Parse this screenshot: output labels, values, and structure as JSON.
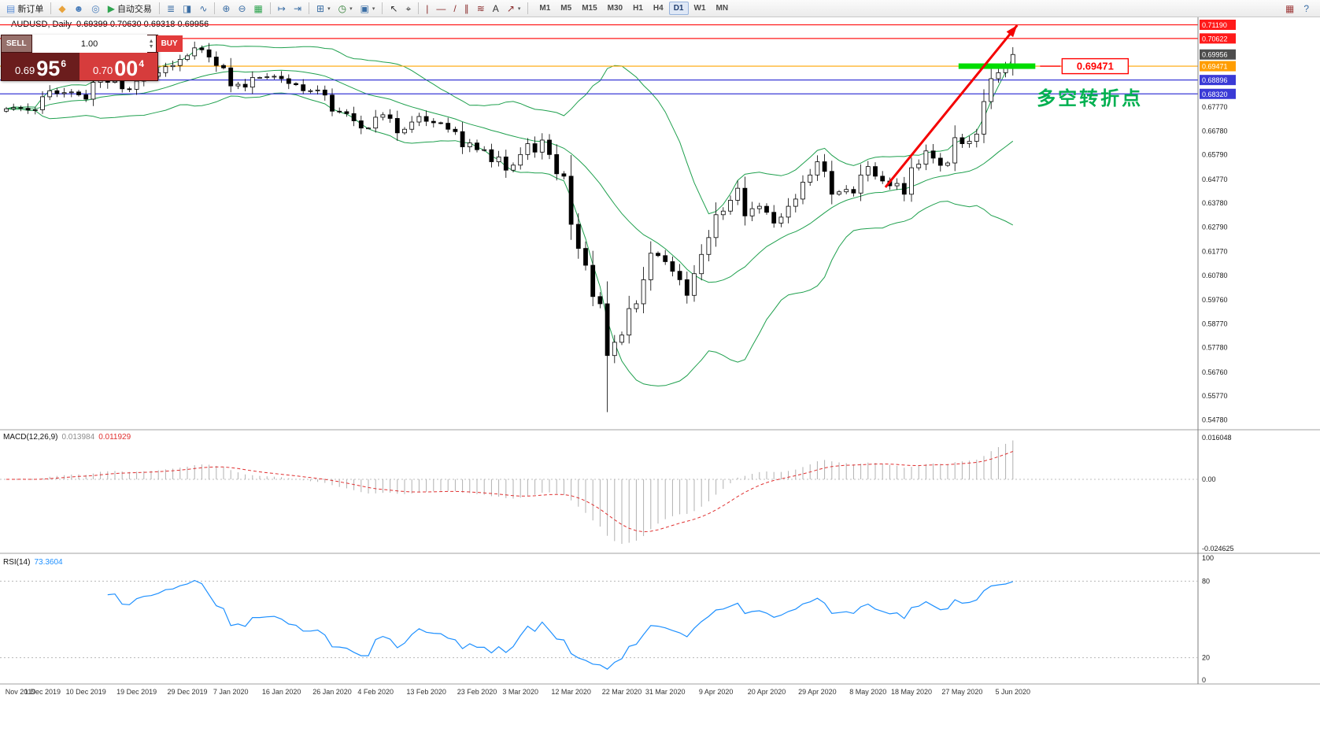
{
  "toolbar": {
    "items": [
      {
        "t": "b",
        "name": "new-order-button",
        "icon": "new-order-icon",
        "g": "▤",
        "c": "#5b8ed6",
        "label": "新订单"
      },
      {
        "t": "s"
      },
      {
        "t": "b",
        "name": "metaeditor-button",
        "icon": "metaeditor-icon",
        "g": "◆",
        "c": "#e8a33d"
      },
      {
        "t": "b",
        "name": "market-watch-button",
        "icon": "market-watch-icon",
        "g": "☻",
        "c": "#4a7ebb"
      },
      {
        "t": "b",
        "name": "data-window-button",
        "icon": "data-window-icon",
        "g": "◎",
        "c": "#4a7ebb"
      },
      {
        "t": "b",
        "name": "autotrading-button",
        "icon": "play-icon",
        "g": "▶",
        "c": "#2ea44f",
        "label": "自动交易"
      },
      {
        "t": "s"
      },
      {
        "t": "b",
        "name": "bars-mode-button",
        "icon": "bars-chart-icon",
        "g": "≣",
        "c": "#3b6ea5"
      },
      {
        "t": "b",
        "name": "candles-mode-button",
        "icon": "candlestick-icon",
        "g": "◨",
        "c": "#3b6ea5"
      },
      {
        "t": "b",
        "name": "line-mode-button",
        "icon": "line-chart-icon",
        "g": "∿",
        "c": "#3b6ea5"
      },
      {
        "t": "s"
      },
      {
        "t": "b",
        "name": "zoom-in-button",
        "icon": "zoom-in-icon",
        "g": "⊕",
        "c": "#3b6ea5"
      },
      {
        "t": "b",
        "name": "zoom-out-button",
        "icon": "zoom-out-icon",
        "g": "⊖",
        "c": "#3b6ea5"
      },
      {
        "t": "b",
        "name": "tile-windows-button",
        "icon": "tile-windows-icon",
        "g": "▦",
        "c": "#2ea44f"
      },
      {
        "t": "s"
      },
      {
        "t": "b",
        "name": "auto-scroll-button",
        "icon": "auto-scroll-icon",
        "g": "↦",
        "c": "#3b6ea5"
      },
      {
        "t": "b",
        "name": "chart-shift-button",
        "icon": "chart-shift-icon",
        "g": "⇥",
        "c": "#3b6ea5"
      },
      {
        "t": "s"
      },
      {
        "t": "b",
        "name": "new-chart-button",
        "icon": "new-chart-icon",
        "g": "⊞",
        "c": "#3b6ea5",
        "dd": true
      },
      {
        "t": "b",
        "name": "period-button",
        "icon": "clock-icon",
        "g": "◷",
        "c": "#2e7d32",
        "dd": true
      },
      {
        "t": "b",
        "name": "template-button",
        "icon": "template-icon",
        "g": "▣",
        "c": "#3b6ea5",
        "dd": true
      },
      {
        "t": "s"
      },
      {
        "t": "b",
        "name": "cursor-button",
        "icon": "cursor-icon",
        "g": "↖",
        "c": "#333333"
      },
      {
        "t": "b",
        "name": "crosshair-button",
        "icon": "crosshair-icon",
        "g": "⌖",
        "c": "#333333"
      },
      {
        "t": "s"
      },
      {
        "t": "b",
        "name": "vertical-line-button",
        "icon": "vertical-line-icon",
        "g": "|",
        "c": "#8a2b2b"
      },
      {
        "t": "b",
        "name": "horizontal-line-button",
        "icon": "horizontal-line-icon",
        "g": "—",
        "c": "#8a2b2b"
      },
      {
        "t": "b",
        "name": "trendline-button",
        "icon": "trendline-icon",
        "g": "/",
        "c": "#8a2b2b"
      },
      {
        "t": "b",
        "name": "channel-button",
        "icon": "channel-icon",
        "g": "∥",
        "c": "#8a2b2b"
      },
      {
        "t": "b",
        "name": "fibonacci-button",
        "icon": "fibonacci-icon",
        "g": "≋",
        "c": "#8a2b2b"
      },
      {
        "t": "b",
        "name": "text-button",
        "icon": "text-icon",
        "g": "A",
        "c": "#333333"
      },
      {
        "t": "b",
        "name": "arrows-button",
        "icon": "arrow-tool-icon",
        "g": "↗",
        "c": "#8a2b2b",
        "dd": true
      },
      {
        "t": "s"
      }
    ],
    "timeframes": [
      {
        "label": "M1"
      },
      {
        "label": "M5"
      },
      {
        "label": "M15"
      },
      {
        "label": "M30"
      },
      {
        "label": "H1"
      },
      {
        "label": "H4"
      },
      {
        "label": "D1",
        "active": true
      },
      {
        "label": "W1"
      },
      {
        "label": "MN"
      }
    ],
    "right_items": [
      {
        "name": "layout-button",
        "icon": "grid-icon",
        "g": "▦",
        "c": "#a04040"
      },
      {
        "name": "help-button",
        "icon": "help-icon",
        "g": "?",
        "c": "#3b6ea5"
      }
    ]
  },
  "one_click": {
    "sell_label": "SELL",
    "buy_label": "BUY",
    "volume": "1.00",
    "sell_price": {
      "big": "0.69",
      "pips": "95",
      "point": "6"
    },
    "buy_price": {
      "big": "0.70",
      "pips": "00",
      "point": "4"
    }
  },
  "chart": {
    "symbol_label": "AUDUSD, Daily",
    "ohlc_text": "0.69399 0.70630 0.69318 0.69956"
  },
  "chart_data": {
    "type": "candlestick",
    "symbol": "AUDUSD",
    "timeframe": "Daily",
    "ohlc_header": {
      "open": "0.69399",
      "high": "0.70630",
      "low": "0.69318",
      "close": "0.69956"
    },
    "price_range": {
      "top": 0.715,
      "bottom": 0.544
    },
    "first_open": 0.676,
    "closes": [
      0.677,
      0.6775,
      0.6772,
      0.6765,
      0.6766,
      0.682,
      0.6845,
      0.6833,
      0.6837,
      0.684,
      0.6828,
      0.681,
      0.688,
      0.6915,
      0.688,
      0.6885,
      0.6853,
      0.6851,
      0.6885,
      0.69,
      0.6905,
      0.692,
      0.6945,
      0.695,
      0.6975,
      0.699,
      0.7023,
      0.7015,
      0.6985,
      0.695,
      0.694,
      0.6865,
      0.6872,
      0.686,
      0.69,
      0.69,
      0.6903,
      0.6905,
      0.6895,
      0.6875,
      0.687,
      0.6845,
      0.6845,
      0.6848,
      0.6827,
      0.676,
      0.6758,
      0.675,
      0.672,
      0.669,
      0.669,
      0.6735,
      0.6745,
      0.673,
      0.667,
      0.6685,
      0.6715,
      0.6738,
      0.6718,
      0.6712,
      0.671,
      0.6685,
      0.6675,
      0.6612,
      0.6628,
      0.66,
      0.66,
      0.655,
      0.657,
      0.6515,
      0.6536,
      0.658,
      0.6625,
      0.659,
      0.664,
      0.658,
      0.65,
      0.649,
      0.629,
      0.619,
      0.612,
      0.599,
      0.596,
      0.5745,
      0.58,
      0.583,
      0.594,
      0.596,
      0.606,
      0.617,
      0.616,
      0.6135,
      0.6095,
      0.606,
      0.5995,
      0.6085,
      0.6165,
      0.6235,
      0.633,
      0.6345,
      0.639,
      0.644,
      0.6325,
      0.6355,
      0.6365,
      0.634,
      0.6295,
      0.632,
      0.6365,
      0.6395,
      0.6465,
      0.6495,
      0.655,
      0.651,
      0.6415,
      0.6425,
      0.6435,
      0.642,
      0.6495,
      0.653,
      0.649,
      0.647,
      0.645,
      0.646,
      0.6415,
      0.6525,
      0.654,
      0.6595,
      0.6565,
      0.6535,
      0.6545,
      0.665,
      0.6625,
      0.6635,
      0.6665,
      0.68,
      0.6895,
      0.692,
      0.694,
      0.69956
    ],
    "low_overrides": {
      "83": 0.551
    },
    "date_labels": [
      {
        "label": "Nov 2019",
        "index": 0
      },
      {
        "label": "1 Dec 2019",
        "index": 5
      },
      {
        "label": "10 Dec 2019",
        "index": 11
      },
      {
        "label": "19 Dec 2019",
        "index": 18
      },
      {
        "label": "29 Dec 2019",
        "index": 25
      },
      {
        "label": "7 Jan 2020",
        "index": 31
      },
      {
        "label": "16 Jan 2020",
        "index": 38
      },
      {
        "label": "26 Jan 2020",
        "index": 45
      },
      {
        "label": "4 Feb 2020",
        "index": 51
      },
      {
        "label": "13 Feb 2020",
        "index": 58
      },
      {
        "label": "23 Feb 2020",
        "index": 65
      },
      {
        "label": "3 Mar 2020",
        "index": 71
      },
      {
        "label": "12 Mar 2020",
        "index": 78
      },
      {
        "label": "22 Mar 2020",
        "index": 85
      },
      {
        "label": "31 Mar 2020",
        "index": 91
      },
      {
        "label": "9 Apr 2020",
        "index": 98
      },
      {
        "label": "20 Apr 2020",
        "index": 105
      },
      {
        "label": "29 Apr 2020",
        "index": 112
      },
      {
        "label": "8 May 2020",
        "index": 119
      },
      {
        "label": "18 May 2020",
        "index": 125
      },
      {
        "label": "27 May 2020",
        "index": 132
      },
      {
        "label": "5 Jun 2020",
        "index": 139
      }
    ],
    "y_axis_ticks": [
      "0.67770",
      "0.66780",
      "0.65790",
      "0.64770",
      "0.63780",
      "0.62790",
      "0.61770",
      "0.60780",
      "0.59760",
      "0.58770",
      "0.57780",
      "0.56760",
      "0.55770",
      "0.54780"
    ],
    "levels": [
      {
        "text": "0.71190",
        "price": 0.7119,
        "line_color": "#ff1a1a",
        "box_color": "#ff1a1a"
      },
      {
        "text": "0.70622",
        "price": 0.70622,
        "line_color": "#ff1a1a",
        "box_color": "#ff1a1a"
      },
      {
        "text": "0.69471",
        "price": 0.69471,
        "line_color": "#ffa500",
        "box_color": "#ff9d00"
      },
      {
        "text": "0.68896",
        "price": 0.68896,
        "line_color": "#3a3ad6",
        "box_color": "#3a3ad6"
      },
      {
        "text": "0.68320",
        "price": 0.6832,
        "line_color": "#3a3ad6",
        "box_color": "#3a3ad6"
      }
    ],
    "current_price": {
      "text": "0.69956",
      "price": 0.69956,
      "box_color": "#4d4d4d"
    },
    "bollinger": {
      "period": 20,
      "deviation": 2,
      "color": "#1fa04e"
    },
    "macd": {
      "name": "MACD(12,26,9)",
      "value_main": "0.013984",
      "value_signal": "0.011929",
      "fast": 12,
      "slow": 26,
      "smooth": 9,
      "axis_max": "0.016048",
      "axis_zero": "0.00",
      "axis_min": "-0.024625",
      "hist_color": "#b0b0b0",
      "signal_color": "#e03030"
    },
    "rsi": {
      "name": "RSI(14)",
      "value": "73.3604",
      "period": 14,
      "color": "#1E90FF",
      "levels": [
        80,
        20
      ],
      "axis": [
        "100",
        "80",
        "20",
        "0"
      ]
    },
    "annotations": {
      "trend_arrow": {
        "from_index": 121.4,
        "from_price": 0.6444,
        "to_index": 139.6,
        "to_price": 0.7117,
        "color": "#f40000",
        "width": 3
      },
      "support_bar": {
        "from_index": 131.5,
        "to_index": 142.1,
        "price": 0.69471,
        "color": "#00dd00",
        "thickness": 7
      },
      "price_tag": {
        "text": "0.69471",
        "index": 145.8,
        "price": 0.6947,
        "color": "#ff0000"
      },
      "note_text": {
        "text": "多空转折点",
        "index": 142.3,
        "price": 0.6787,
        "color": "#00b050",
        "size": 24
      }
    }
  }
}
